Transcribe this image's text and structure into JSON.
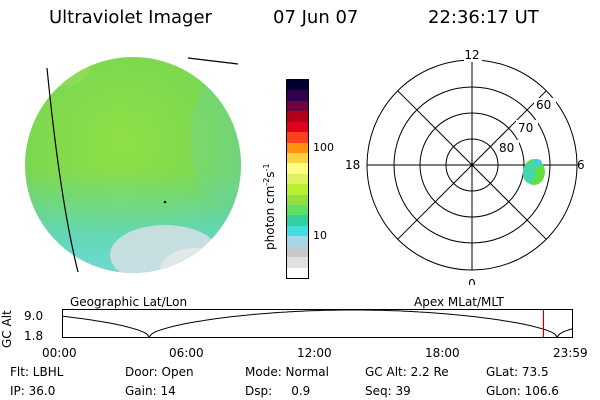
{
  "header": {
    "title": "Ultraviolet Imager",
    "date": "07 Jun 07",
    "time": "22:36:17 UT"
  },
  "colorbar": {
    "label_main": "photon cm",
    "label_sup1": "-2",
    "label_mid": "s",
    "label_sup2": "-1",
    "tick_100": "100",
    "tick_10": "10",
    "colors": [
      "#ffffff",
      "#e0e0e0",
      "#c8c8c8",
      "#a8d8e8",
      "#40e0e0",
      "#30d0a0",
      "#60e060",
      "#90e040",
      "#b8f030",
      "#e0f060",
      "#ffff80",
      "#ffd040",
      "#ff9010",
      "#ff4020",
      "#e00020",
      "#b0001a",
      "#700040",
      "#300050",
      "#000030"
    ]
  },
  "polar": {
    "mlt_12": "12",
    "mlt_18": "18",
    "mlt_6": "6",
    "mlt_0": "0",
    "lat_60": "60",
    "lat_70": "70",
    "lat_80": "80"
  },
  "timeline": {
    "label_left": "Geographic Lat/Lon",
    "label_right": "Apex MLat/MLT",
    "ylabel": "GC Alt",
    "ytick_top": "9.0",
    "ytick_bottom": "1.8",
    "xticks": [
      "00:00",
      "06:00",
      "12:00",
      "18:00",
      "23:59"
    ],
    "current_time_fraction": 0.943,
    "line_color": "#000000",
    "marker_color": "#c00000"
  },
  "status": {
    "flt": "Flt: LBHL",
    "door": "Door: Open",
    "mode": "Mode: Normal",
    "gcalt": "GC Alt: 2.2 Re",
    "glat": "GLat: 73.5",
    "ip": "IP: 36.0",
    "gain": "Gain: 14",
    "dsp": "Dsp:     0.9",
    "seq": "Seq: 39",
    "glon": "GLon: 106.6"
  }
}
